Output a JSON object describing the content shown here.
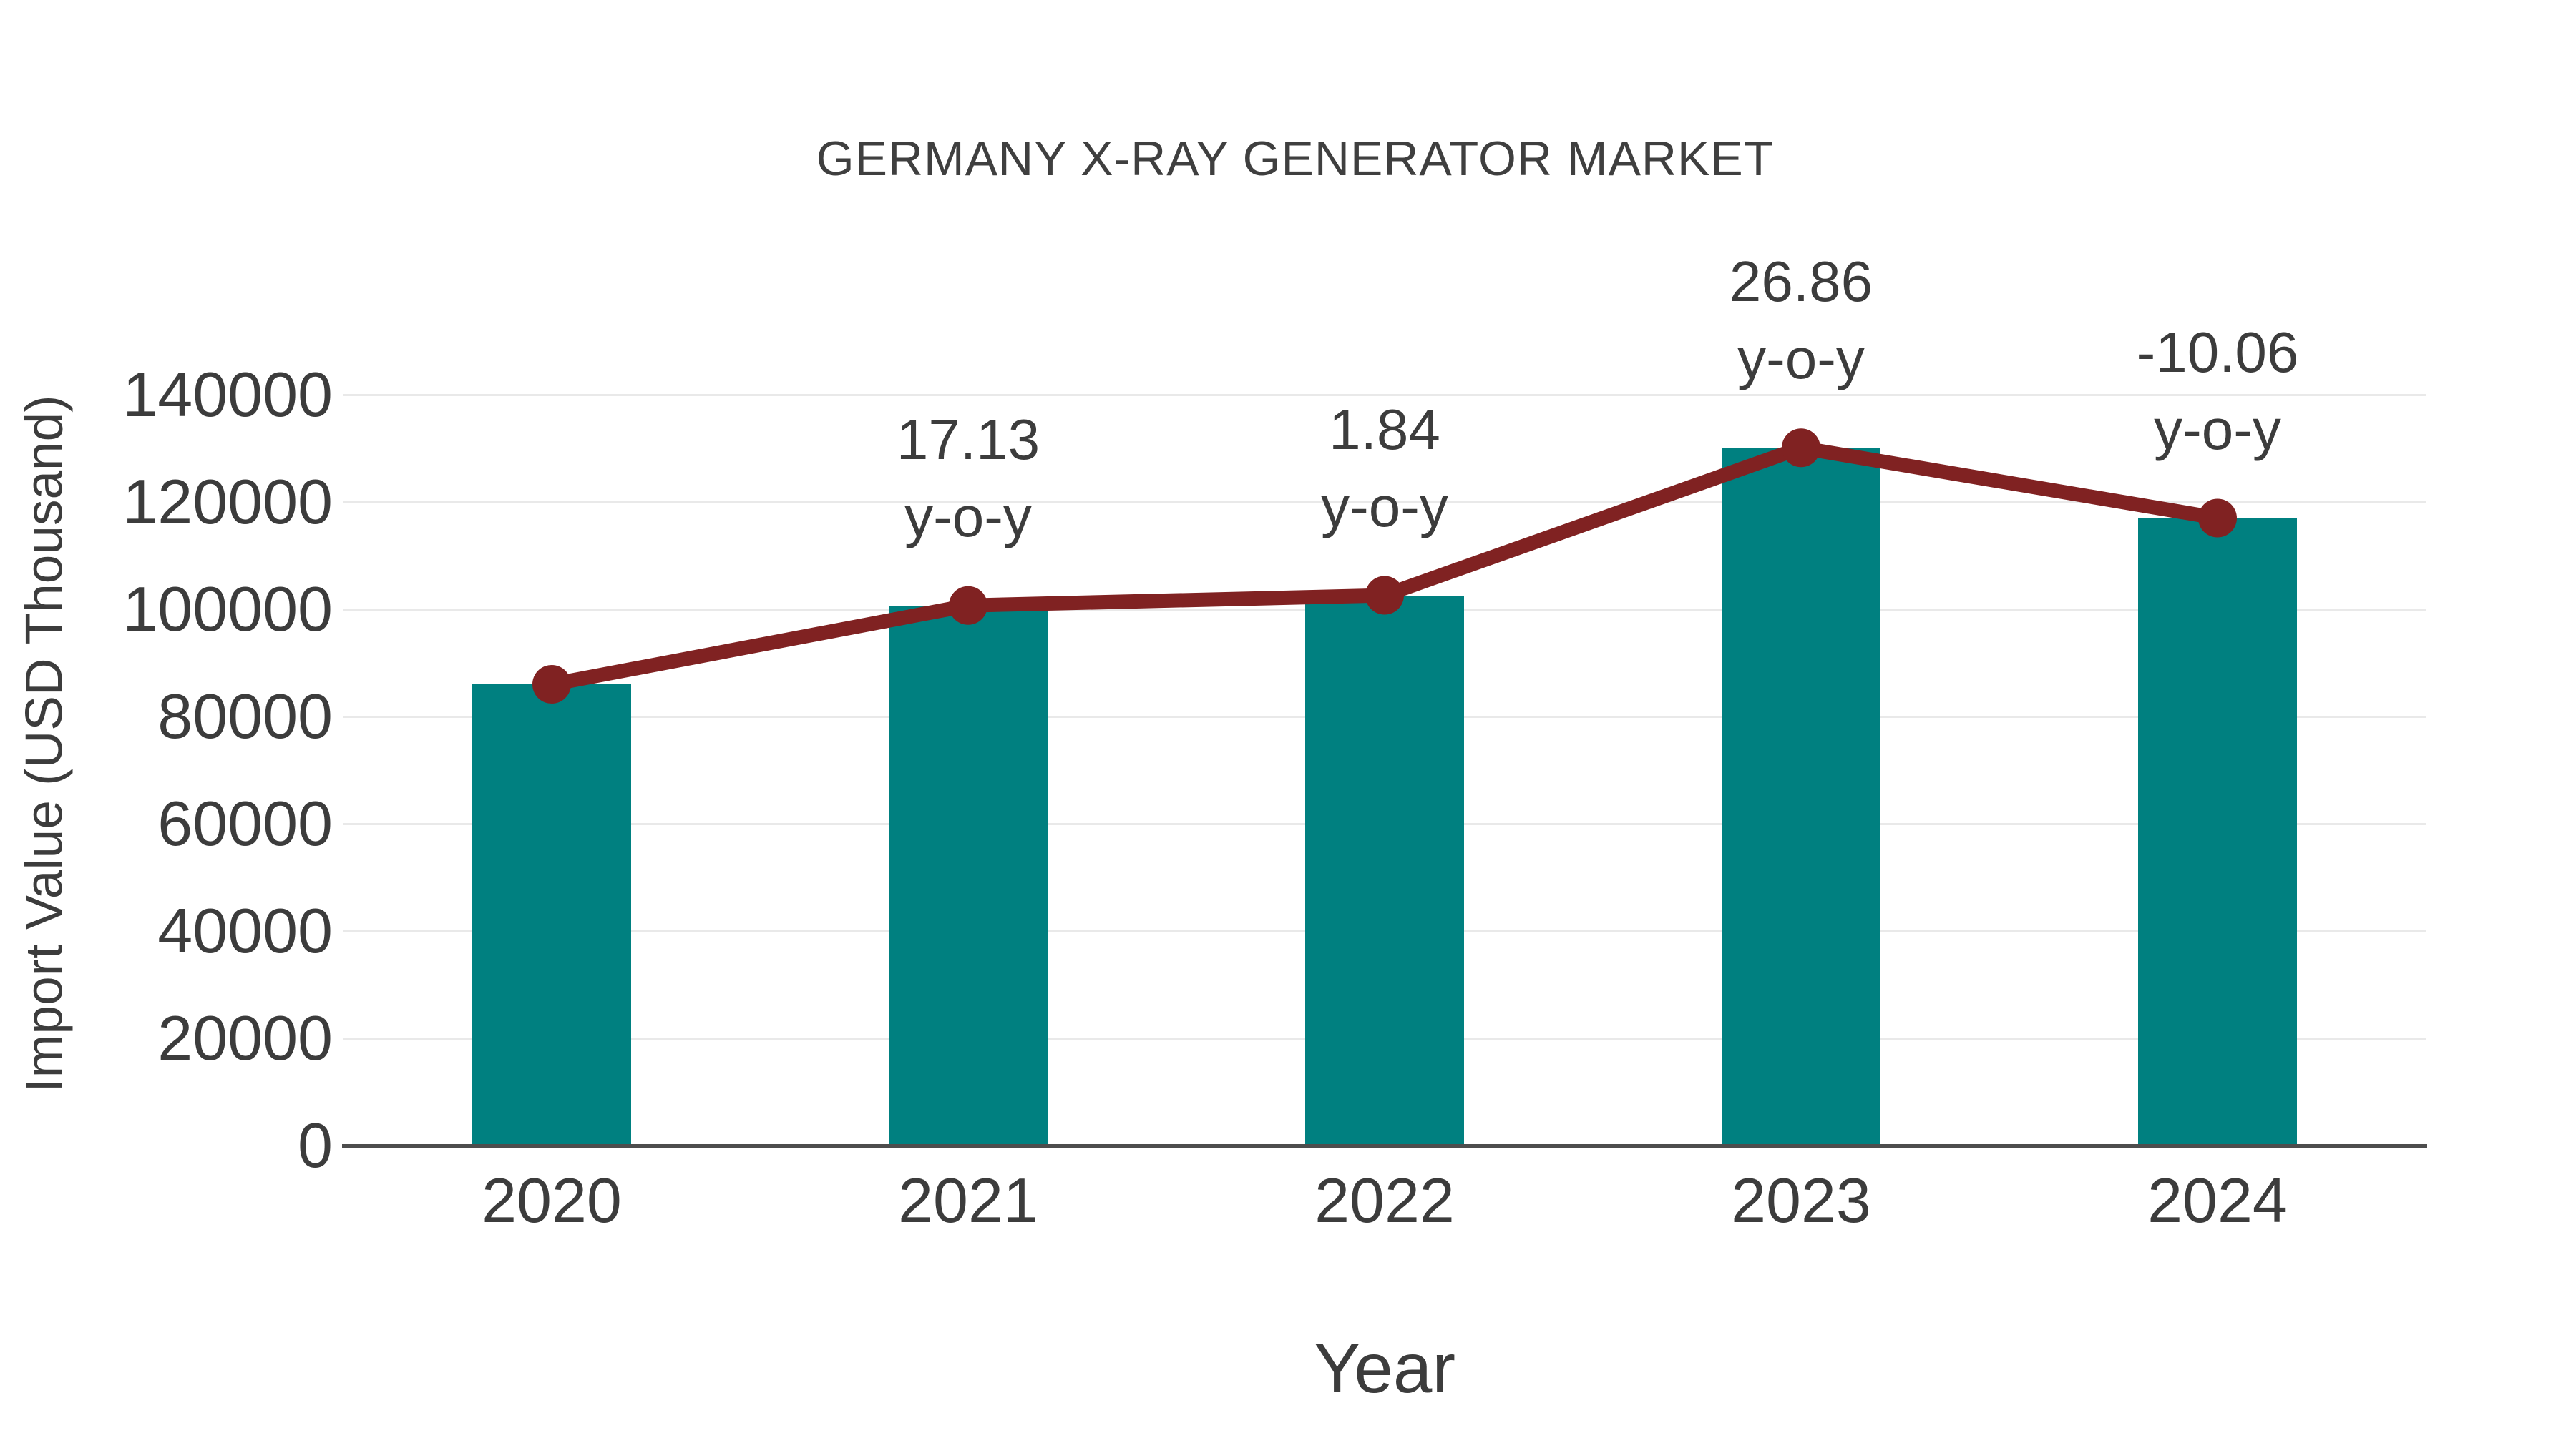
{
  "chart_data": {
    "type": "bar",
    "title": "GERMANY X-RAY GENERATOR MARKET",
    "xlabel": "Year",
    "ylabel": "Import Value (USD Thousand)",
    "categories": [
      "2020",
      "2021",
      "2022",
      "2023",
      "2024"
    ],
    "series": [
      {
        "name": "import-value-bars",
        "type": "bar",
        "color": "#008080",
        "values": [
          86000,
          100700,
          102600,
          130100,
          117000
        ]
      },
      {
        "name": "import-value-trend-line",
        "type": "line",
        "color": "#802222",
        "values": [
          86000,
          100700,
          102600,
          130100,
          117000
        ]
      }
    ],
    "annotations": [
      {
        "category": "2021",
        "value_label": "17.13",
        "suffix_label": "y-o-y"
      },
      {
        "category": "2022",
        "value_label": "1.84",
        "suffix_label": "y-o-y"
      },
      {
        "category": "2023",
        "value_label": "26.86",
        "suffix_label": "y-o-y"
      },
      {
        "category": "2024",
        "value_label": "-10.06",
        "suffix_label": "y-o-y"
      }
    ],
    "ylim": [
      0,
      140000
    ],
    "yticks": [
      0,
      20000,
      40000,
      60000,
      80000,
      100000,
      120000,
      140000
    ],
    "grid": "horizontal-only",
    "legend": false,
    "colors": {
      "bar": "#008080",
      "line": "#802222",
      "text": "#3c3c3c",
      "grid": "#e9e9e9",
      "axis": "#4d4d4d",
      "background": "#ffffff"
    }
  }
}
